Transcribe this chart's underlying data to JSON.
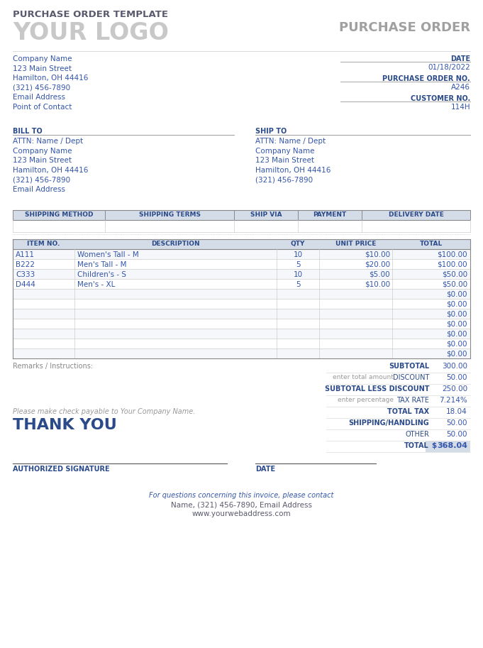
{
  "title": "PURCHASE ORDER TEMPLATE",
  "logo_text": "YOUR LOGO",
  "po_header": "PURCHASE ORDER",
  "bg_color": "#ffffff",
  "title_color": "#5a5a6e",
  "logo_color": "#c8c8c8",
  "po_header_color": "#a0a0a0",
  "blue_color": "#3355aa",
  "label_color": "#2b4a8a",
  "line_color": "#aaaaaa",
  "header_bg": "#d4dce8",
  "header_text_color": "#2b4a8a",
  "company_info": [
    "Company Name",
    "123 Main Street",
    "Hamilton, OH 44416",
    "(321) 456-7890",
    "Email Address",
    "Point of Contact"
  ],
  "right_labels": [
    "DATE",
    "PURCHASE ORDER NO.",
    "CUSTOMER NO."
  ],
  "right_values": [
    "01/18/2022",
    "A246",
    "114H"
  ],
  "bill_to_lines": [
    "ATTN: Name / Dept",
    "Company Name",
    "123 Main Street",
    "Hamilton, OH 44416",
    "(321) 456-7890",
    "Email Address"
  ],
  "ship_to_lines": [
    "ATTN: Name / Dept",
    "Company Name",
    "123 Main Street",
    "Hamilton, OH 44416",
    "(321) 456-7890"
  ],
  "shipping_headers": [
    "SHIPPING METHOD",
    "SHIPPING TERMS",
    "SHIP VIA",
    "PAYMENT",
    "DELIVERY DATE"
  ],
  "item_headers": [
    "ITEM NO.",
    "DESCRIPTION",
    "QTY",
    "UNIT PRICE",
    "TOTAL"
  ],
  "items": [
    [
      "A111",
      "Women's Tall - M",
      "10",
      "$10.00",
      "$100.00"
    ],
    [
      "B222",
      "Men's Tall - M",
      "5",
      "$20.00",
      "$100.00"
    ],
    [
      "C333",
      "Children's - S",
      "10",
      "$5.00",
      "$50.00"
    ],
    [
      "D444",
      "Men's - XL",
      "5",
      "$10.00",
      "$50.00"
    ]
  ],
  "empty_rows": 7,
  "summary_rows": [
    {
      "label": "SUBTOTAL",
      "prefix": "",
      "value": "300.00",
      "bold": true
    },
    {
      "label": "DISCOUNT",
      "prefix": "enter total amount",
      "value": "50.00",
      "bold": false
    },
    {
      "label": "SUBTOTAL LESS DISCOUNT",
      "prefix": "",
      "value": "250.00",
      "bold": true
    },
    {
      "label": "TAX RATE",
      "prefix": "enter percentage",
      "value": "7.214%",
      "bold": false
    },
    {
      "label": "TOTAL TAX",
      "prefix": "",
      "value": "18.04",
      "bold": true
    },
    {
      "label": "SHIPPING/HANDLING",
      "prefix": "",
      "value": "50.00",
      "bold": true
    },
    {
      "label": "OTHER",
      "prefix": "",
      "value": "50.00",
      "bold": false
    },
    {
      "label": "TOTAL",
      "prefix": "$",
      "value": "368.04",
      "bold": true,
      "is_total": true
    }
  ],
  "remarks_label": "Remarks / Instructions:",
  "check_payable": "Please make check payable to Your Company Name.",
  "thank_you": "THANK YOU",
  "auth_label": "AUTHORIZED SIGNATURE",
  "date_label": "DATE",
  "footer1": "For questions concerning this invoice, please contact",
  "footer2": "Name, (321) 456-7890, Email Address",
  "footer3": "www.yourwebaddress.com"
}
